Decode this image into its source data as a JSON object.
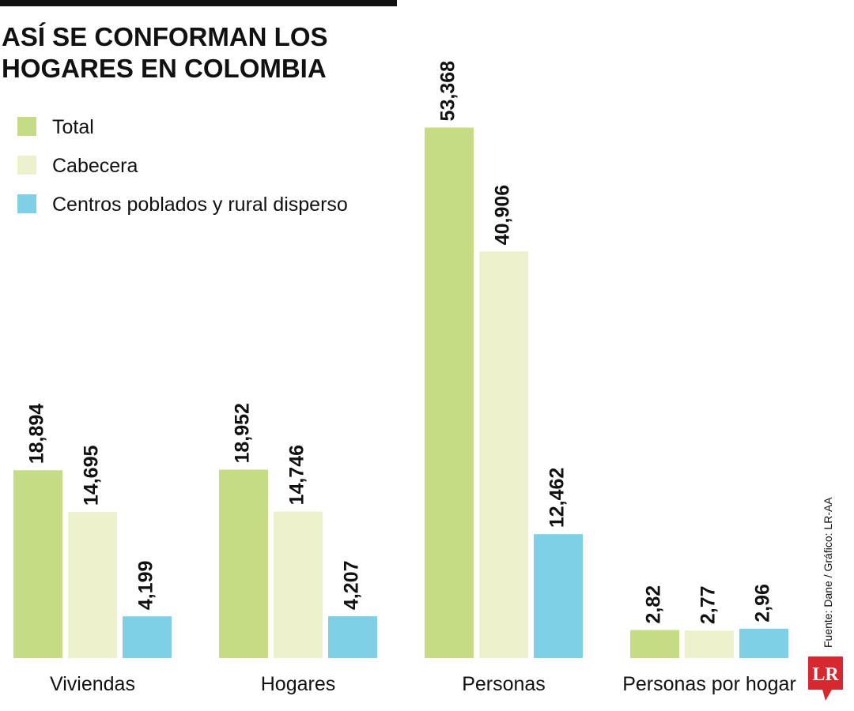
{
  "chart_data": [
    {
      "type": "bar",
      "title": "ASÍ SE CONFORMAN LOS HOGARES EN COLOMBIA",
      "categories": [
        "Viviendas",
        "Hogares",
        "Personas"
      ],
      "series": [
        {
          "name": "Total",
          "color": "#c5dc85",
          "values": [
            18894,
            18952,
            53368
          ],
          "value_labels": [
            "18,894",
            "18,952",
            "53,368"
          ]
        },
        {
          "name": "Cabecera",
          "color": "#eef2cc",
          "values": [
            14695,
            14746,
            40906
          ],
          "value_labels": [
            "14,695",
            "14,746",
            "40,906"
          ]
        },
        {
          "name": "Centros poblados y rural disperso",
          "color": "#7fd0e6",
          "values": [
            4199,
            4207,
            12462
          ],
          "value_labels": [
            "4,199",
            "4,207",
            "12,462"
          ]
        }
      ],
      "ylim": [
        0,
        60000
      ],
      "source": "Fuente: Dane / Gráfico: LR-AA",
      "logo": "LR"
    },
    {
      "type": "bar",
      "categories": [
        "Personas por hogar"
      ],
      "series": [
        {
          "color": "#c5dc85",
          "values": [
            2.82
          ],
          "value_labels": [
            "2,82"
          ]
        },
        {
          "color": "#eef2cc",
          "values": [
            2.77
          ],
          "value_labels": [
            "2,77"
          ]
        },
        {
          "color": "#7fd0e6",
          "values": [
            2.96
          ],
          "value_labels": [
            "2,96"
          ]
        }
      ],
      "ylim": [
        0,
        60
      ]
    }
  ]
}
